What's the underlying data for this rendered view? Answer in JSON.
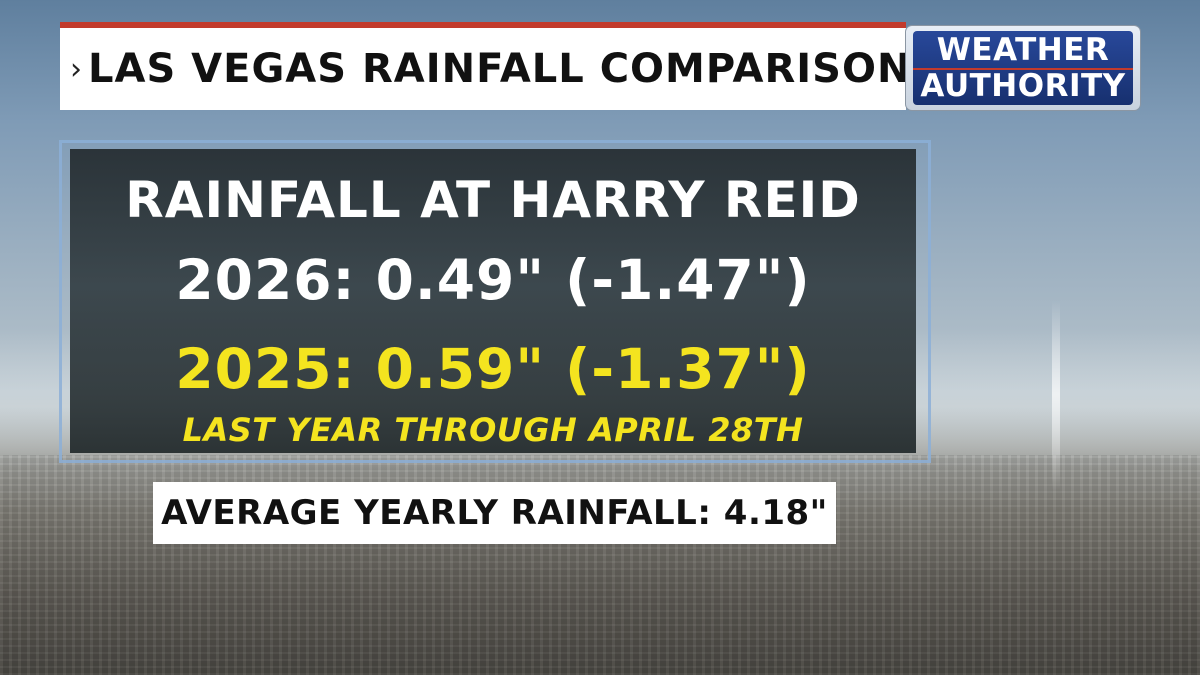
{
  "header": {
    "title": "LAS VEGAS RAINFALL COMPARISON",
    "chevron": "›"
  },
  "logo": {
    "line1": "WEATHER",
    "line2": "AUTHORITY"
  },
  "panel": {
    "heading": "RAINFALL AT HARRY REID",
    "current_year": "2026: 0.49\" (-1.47\")",
    "previous_year": "2025: 0.59\" (-1.37\")",
    "note": "LAST YEAR THROUGH APRIL 28TH"
  },
  "average": {
    "text": "AVERAGE YEARLY RAINFALL: 4.18\""
  },
  "colors": {
    "accent_red": "#c23a2c",
    "highlight_yellow": "#f4e41f",
    "logo_blue": "#28489a"
  }
}
